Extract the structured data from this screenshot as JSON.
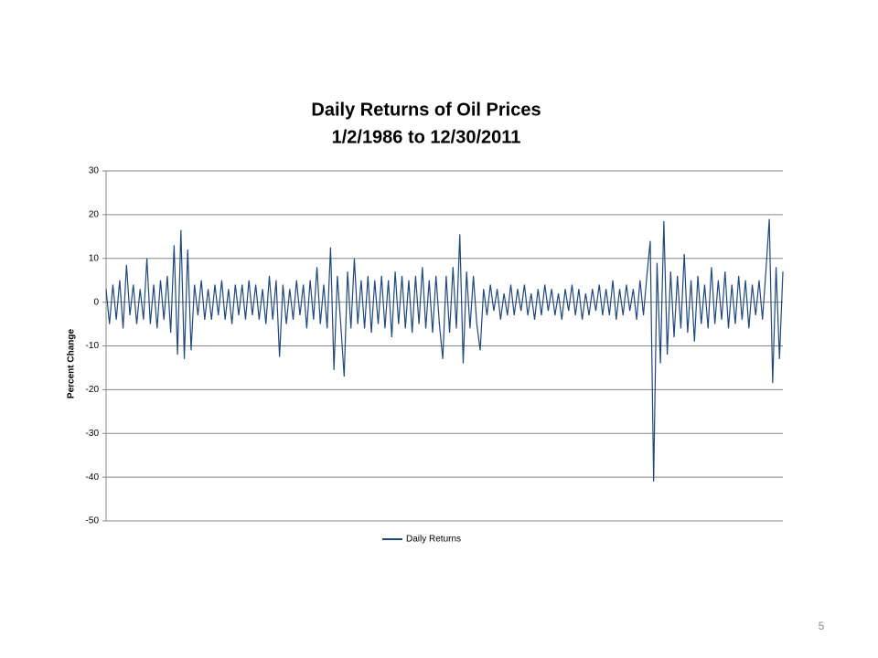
{
  "chart_data": {
    "type": "line",
    "title": "Daily Returns of Oil Prices",
    "subtitle": "1/2/1986 to 12/30/2011",
    "y_label": "Percent Change",
    "ylim": [
      -50,
      30
    ],
    "yticks": [
      -50,
      -40,
      -30,
      -20,
      -10,
      0,
      10,
      20,
      30
    ],
    "grid": true,
    "legend": "bottom",
    "series": [
      {
        "name": "Daily Returns",
        "color": "#1f497d",
        "values": [
          3,
          -5,
          4,
          -4,
          5,
          -6,
          8.5,
          -3,
          4,
          -5,
          3,
          -4,
          10,
          -5,
          4,
          -6,
          5,
          -4,
          6,
          -7,
          13,
          -12,
          16.5,
          -13,
          12,
          -11,
          4,
          -3,
          5,
          -4,
          3,
          -4,
          4,
          -3,
          5,
          -4,
          3,
          -5,
          4,
          -3,
          4,
          -4,
          5,
          -3,
          4,
          -4,
          3,
          -5,
          6,
          -4,
          5,
          -12.5,
          4,
          -5,
          3,
          -4,
          5,
          -3,
          4,
          -6,
          5,
          -4,
          8,
          -5,
          4,
          -6,
          12.5,
          -15.5,
          6,
          -5,
          -17,
          7,
          -6,
          10,
          -5,
          5,
          -6,
          6,
          -7,
          5,
          -5,
          6,
          -6,
          5,
          -8,
          7,
          -5,
          6,
          -6,
          5,
          -7,
          6,
          -5,
          8,
          -6,
          5,
          -7,
          6,
          -5,
          -13,
          6,
          -7,
          8,
          -6,
          15.5,
          -14,
          7,
          -6,
          6,
          -5,
          -11,
          3,
          -3,
          4,
          -2,
          3,
          -4,
          2,
          -3,
          4,
          -3,
          3,
          -2,
          4,
          -3,
          2,
          -4,
          3,
          -3,
          4,
          -2,
          3,
          -3,
          2,
          -4,
          3,
          -2,
          4,
          -3,
          3,
          -4,
          2,
          -3,
          3,
          -2,
          4,
          -3,
          3,
          -3,
          5,
          -4,
          3,
          -3,
          4,
          -2,
          3,
          -4,
          5,
          -3,
          6,
          14,
          -41,
          9,
          -14,
          18.5,
          -12,
          7,
          -8,
          6,
          -6,
          11,
          -7,
          5,
          -9,
          6,
          -5,
          4,
          -6,
          8,
          -5,
          5,
          -4,
          7,
          -6,
          4,
          -5,
          6,
          -4,
          5,
          -6,
          4,
          -3,
          5,
          -4,
          7,
          19,
          -18.5,
          8,
          -13,
          7
        ]
      }
    ]
  },
  "page_number": "5"
}
